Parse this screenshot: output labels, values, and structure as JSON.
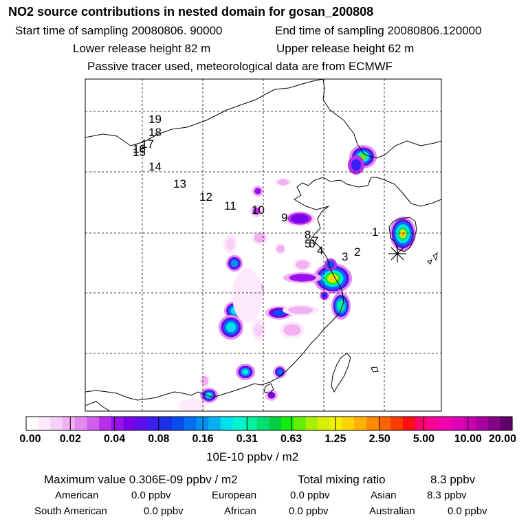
{
  "header": {
    "title": "NO2 source contributions in nested domain for gosan_200808",
    "start_label": "Start time of sampling 20080806. 90000",
    "end_label": "End time of sampling 20080806.120000",
    "lower_label": "Lower release height   82 m",
    "upper_label": "Upper release height   62 m",
    "tracer_note": "Passive tracer used, meteorological data are from ECMWF"
  },
  "map": {
    "trajectory_labels": [
      "1",
      "2",
      "3",
      "4",
      "5",
      "6",
      "7",
      "8",
      "9",
      "10",
      "11",
      "12",
      "13",
      "14",
      "15",
      "16",
      "17",
      "18",
      "19"
    ],
    "release_marker": "asterisk-icon"
  },
  "colorbar": {
    "labels": [
      "0.00",
      "0.02",
      "0.04",
      "0.08",
      "0.16",
      "0.31",
      "0.63",
      "1.25",
      "2.50",
      "5.00",
      "10.00",
      "20.00"
    ],
    "colors": [
      "#ffffff",
      "#fde8fc",
      "#f8cff8",
      "#f1b0f2",
      "#e488ee",
      "#d060ec",
      "#b830ee",
      "#9a10f0",
      "#7a00e8",
      "#5c10f0",
      "#3a20f0",
      "#2030e8",
      "#0a4cee",
      "#0070f0",
      "#0090f0",
      "#00b0f0",
      "#00e0ec",
      "#00f4d0",
      "#00f0a0",
      "#00e070",
      "#00d040",
      "#10f010",
      "#60f000",
      "#a8f000",
      "#d8f000",
      "#f0f000",
      "#ffd200",
      "#ffb000",
      "#ff8c00",
      "#ff6400",
      "#ff3c00",
      "#ff1010",
      "#ff0070",
      "#ff0098",
      "#f000b0",
      "#e000b8",
      "#c800b0",
      "#a800a0",
      "#880088",
      "#600068"
    ],
    "units": "10E-10 ppbv / m2"
  },
  "summary": {
    "max_label": "Maximum value  0.306E-09 ppbv / m2",
    "total_label": "Total mixing ratio",
    "total_value": "8.3 ppbv",
    "regions": [
      {
        "name": "American",
        "value": "0.0 ppbv"
      },
      {
        "name": "European",
        "value": "0.0 ppbv"
      },
      {
        "name": "Asian",
        "value": "8.3 ppbv"
      },
      {
        "name": "South American",
        "value": "0.0 ppbv"
      },
      {
        "name": "African",
        "value": "0.0 ppbv"
      },
      {
        "name": "Australian",
        "value": "0.0 ppbv"
      }
    ]
  }
}
